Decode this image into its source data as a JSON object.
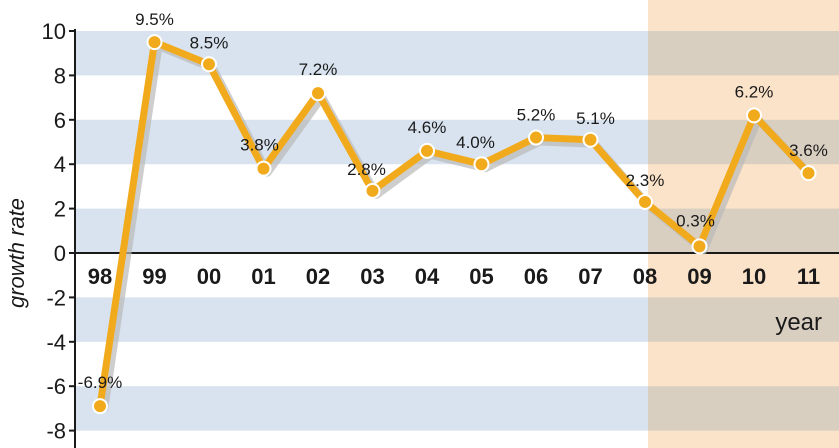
{
  "chart_data": {
    "type": "line",
    "xlabel": "year",
    "ylabel": "growth rate",
    "ylim": [
      -8,
      10
    ],
    "yticks": [
      "10",
      "8",
      "6",
      "4",
      "2",
      "0",
      "-2",
      "-4",
      "-6",
      "-8"
    ],
    "categories": [
      "98",
      "99",
      "00",
      "01",
      "02",
      "03",
      "04",
      "05",
      "06",
      "07",
      "08",
      "09",
      "10",
      "11"
    ],
    "series": [
      {
        "values": [
          -6.9,
          9.5,
          8.5,
          3.8,
          7.2,
          2.8,
          4.6,
          4.0,
          5.2,
          5.1,
          2.3,
          0.3,
          6.2,
          3.6
        ],
        "labels": [
          "-6.9%",
          "9.5%",
          "8.5%",
          "3.8%",
          "7.2%",
          "2.8%",
          "4.6%",
          "4.0%",
          "5.2%",
          "5.1%",
          "2.3%",
          "0.3%",
          "6.2%",
          "3.6%"
        ]
      }
    ],
    "highlight_from_category": "08",
    "grid": "horizontal alternating bands",
    "colors": {
      "line": "#f2aa1d",
      "band": "#d8e3ef",
      "highlight": "#fbe3c9",
      "highlight_text": "#6b5232",
      "shadow": "#b9b9b9"
    }
  }
}
